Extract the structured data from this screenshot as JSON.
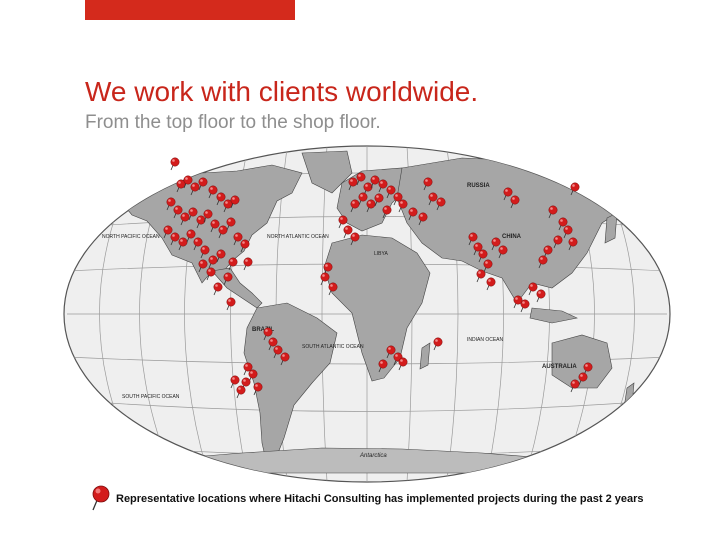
{
  "header": {
    "title": "We work with clients worldwide.",
    "subtitle": "From the top floor to the shop floor."
  },
  "map": {
    "labels": {
      "russia": "RUSSIA",
      "china": "CHINA",
      "brazil": "BRAZIL",
      "australia": "AUSTRALIA",
      "libya": "LIBYA",
      "antarctica": "Antarctica",
      "north_atlantic": "NORTH ATLANTIC OCEAN",
      "south_atlantic": "SOUTH ATLANTIC OCEAN",
      "north_pacific": "NORTH PACIFIC OCEAN",
      "south_pacific": "SOUTH PACIFIC OCEAN",
      "indian_ocean": "INDIAN OCEAN"
    },
    "pin_icon": "red-pushpin-icon"
  },
  "legend": {
    "icon": "red-pushpin-icon",
    "text": "Representative locations where Hitachi Consulting has implemented projects during the past 2 years"
  },
  "colors": {
    "accent": "#d42a1c",
    "title": "#c8261b",
    "subtitle": "#8e8e8e",
    "ocean": "#efefef",
    "land": "#a6a6a6",
    "land_dark": "#8a8a8a",
    "pin": "#d31c1c"
  }
}
